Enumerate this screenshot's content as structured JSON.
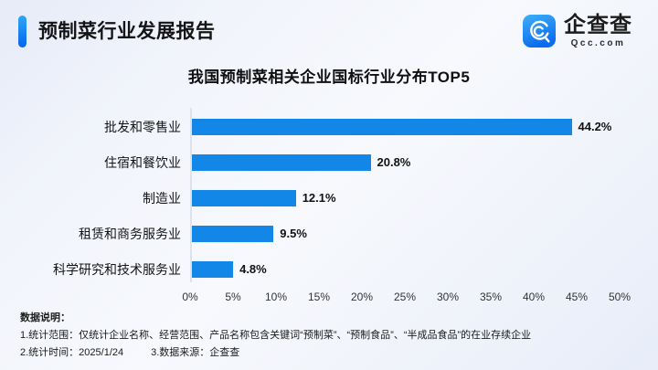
{
  "header": {
    "title": "预制菜行业发展报告",
    "logo": {
      "name": "企查查",
      "domain": "Qcc.com"
    }
  },
  "chart_data": {
    "type": "bar",
    "orientation": "horizontal",
    "title": "我国预制菜相关企业国标行业分布TOP5",
    "categories": [
      "批发和零售业",
      "住宿和餐饮业",
      "制造业",
      "租赁和商务服务业",
      "科学研究和技术服务业"
    ],
    "values": [
      44.2,
      20.8,
      12.1,
      9.5,
      4.8
    ],
    "value_labels": [
      "44.2%",
      "20.8%",
      "12.1%",
      "9.5%",
      "4.8%"
    ],
    "xlabel": "",
    "ylabel": "",
    "xlim": [
      0,
      50
    ],
    "x_ticks": [
      "0%",
      "5%",
      "10%",
      "15%",
      "20%",
      "25%",
      "30%",
      "35%",
      "40%",
      "45%",
      "50%"
    ],
    "grid": false,
    "legend": false,
    "bar_color": "#1287E8"
  },
  "footer": {
    "heading": "数据说明：",
    "note1": "1.统计范围：仅统计企业名称、经营范围、产品名称包含关键词“预制菜”、“预制食品”、“半成品食品”的在业存续企业",
    "note2": "2.统计时间：2025/1/24",
    "note3": "3.数据来源：企查查"
  },
  "colors": {
    "bar": "#1287E8",
    "accent_top": "#2EA7F8",
    "accent_bottom": "#0565EF",
    "logo_icon_top": "#3FB0FA",
    "logo_icon_bottom": "#0B6CEF",
    "axis_line": "#DDE2EC"
  }
}
